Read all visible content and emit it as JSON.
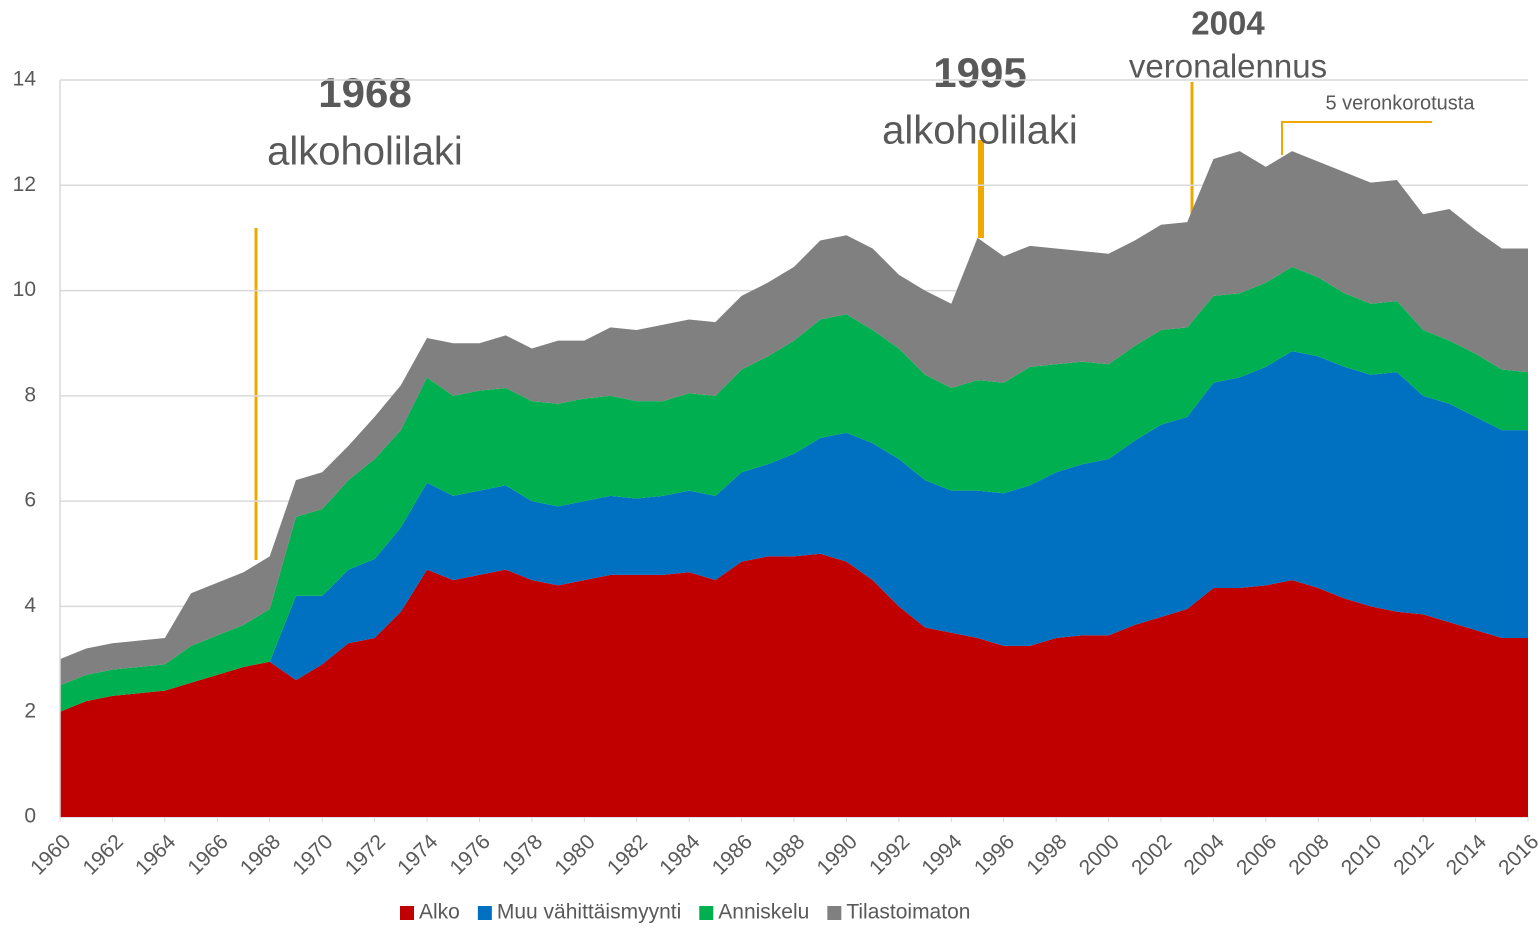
{
  "chart_data": {
    "type": "stacked_area",
    "x": [
      1960,
      1961,
      1962,
      1963,
      1964,
      1965,
      1966,
      1967,
      1968,
      1969,
      1970,
      1971,
      1972,
      1973,
      1974,
      1975,
      1976,
      1977,
      1978,
      1979,
      1980,
      1981,
      1982,
      1983,
      1984,
      1985,
      1986,
      1987,
      1988,
      1989,
      1990,
      1991,
      1992,
      1993,
      1994,
      1995,
      1996,
      1997,
      1998,
      1999,
      2000,
      2001,
      2002,
      2003,
      2004,
      2005,
      2006,
      2007,
      2008,
      2009,
      2010,
      2011,
      2012,
      2013,
      2014,
      2015,
      2016
    ],
    "xlim": [
      1960,
      2016
    ],
    "xticks": [
      1960,
      1962,
      1964,
      1966,
      1968,
      1970,
      1972,
      1974,
      1976,
      1978,
      1980,
      1982,
      1984,
      1986,
      1988,
      1990,
      1992,
      1994,
      1996,
      1998,
      2000,
      2002,
      2004,
      2006,
      2008,
      2010,
      2012,
      2014,
      2016
    ],
    "ylim": [
      0,
      14
    ],
    "yticks": [
      0,
      2,
      4,
      6,
      8,
      10,
      12,
      14
    ],
    "grid": true,
    "legend": "bottom",
    "series": [
      {
        "name": "Alko",
        "color": "#c00000",
        "values": [
          2.0,
          2.2,
          2.3,
          2.35,
          2.4,
          2.55,
          2.7,
          2.85,
          2.95,
          2.6,
          2.9,
          3.3,
          3.4,
          3.9,
          4.7,
          4.5,
          4.6,
          4.7,
          4.5,
          4.4,
          4.5,
          4.6,
          4.6,
          4.6,
          4.65,
          4.5,
          4.85,
          4.95,
          4.95,
          5.0,
          4.85,
          4.5,
          4.0,
          3.6,
          3.5,
          3.4,
          3.25,
          3.25,
          3.4,
          3.45,
          3.45,
          3.65,
          3.8,
          3.95,
          4.35,
          4.35,
          4.4,
          4.5,
          4.35,
          4.15,
          4.0,
          3.9,
          3.85,
          3.7,
          3.55,
          3.4,
          3.4
        ]
      },
      {
        "name": "Muu vähittäismyynti",
        "color": "#0070c0",
        "values": [
          0,
          0,
          0,
          0,
          0,
          0,
          0,
          0,
          0,
          1.6,
          1.3,
          1.4,
          1.5,
          1.6,
          1.65,
          1.6,
          1.6,
          1.6,
          1.5,
          1.5,
          1.5,
          1.5,
          1.45,
          1.5,
          1.55,
          1.6,
          1.7,
          1.75,
          1.95,
          2.2,
          2.45,
          2.6,
          2.8,
          2.8,
          2.7,
          2.8,
          2.9,
          3.05,
          3.15,
          3.25,
          3.35,
          3.5,
          3.65,
          3.65,
          3.9,
          4.0,
          4.15,
          4.35,
          4.4,
          4.4,
          4.4,
          4.55,
          4.15,
          4.15,
          4.05,
          3.95,
          3.95
        ]
      },
      {
        "name": "Anniskelu",
        "color": "#00b050",
        "values": [
          0.5,
          0.5,
          0.5,
          0.5,
          0.5,
          0.7,
          0.75,
          0.8,
          1.0,
          1.5,
          1.65,
          1.7,
          1.9,
          1.85,
          2.0,
          1.9,
          1.9,
          1.85,
          1.9,
          1.95,
          1.95,
          1.9,
          1.85,
          1.8,
          1.85,
          1.9,
          1.95,
          2.05,
          2.15,
          2.25,
          2.25,
          2.15,
          2.1,
          2.0,
          1.95,
          2.1,
          2.1,
          2.25,
          2.05,
          1.95,
          1.8,
          1.8,
          1.8,
          1.7,
          1.65,
          1.6,
          1.6,
          1.6,
          1.5,
          1.4,
          1.35,
          1.35,
          1.25,
          1.2,
          1.2,
          1.15,
          1.1
        ]
      },
      {
        "name": "Tilastoimaton",
        "color": "#808080",
        "values": [
          0.5,
          0.5,
          0.5,
          0.5,
          0.5,
          1.0,
          1.0,
          1.0,
          1.0,
          0.7,
          0.7,
          0.65,
          0.8,
          0.85,
          0.75,
          1.0,
          0.9,
          1.0,
          1.0,
          1.2,
          1.1,
          1.3,
          1.35,
          1.45,
          1.4,
          1.4,
          1.4,
          1.4,
          1.4,
          1.5,
          1.5,
          1.55,
          1.4,
          1.6,
          1.6,
          2.7,
          2.4,
          2.3,
          2.2,
          2.1,
          2.1,
          2.0,
          2.0,
          2.0,
          2.6,
          2.7,
          2.2,
          2.2,
          2.2,
          2.3,
          2.3,
          2.3,
          2.2,
          2.5,
          2.35,
          2.3,
          2.35
        ]
      }
    ],
    "annotations": [
      {
        "title": "1968",
        "text": "alkoholilaki"
      },
      {
        "title": "1995",
        "text": "alkoholilaki"
      },
      {
        "title": "2004",
        "text": "veronalennus"
      },
      {
        "text": "5 veronkorotusta"
      }
    ]
  }
}
